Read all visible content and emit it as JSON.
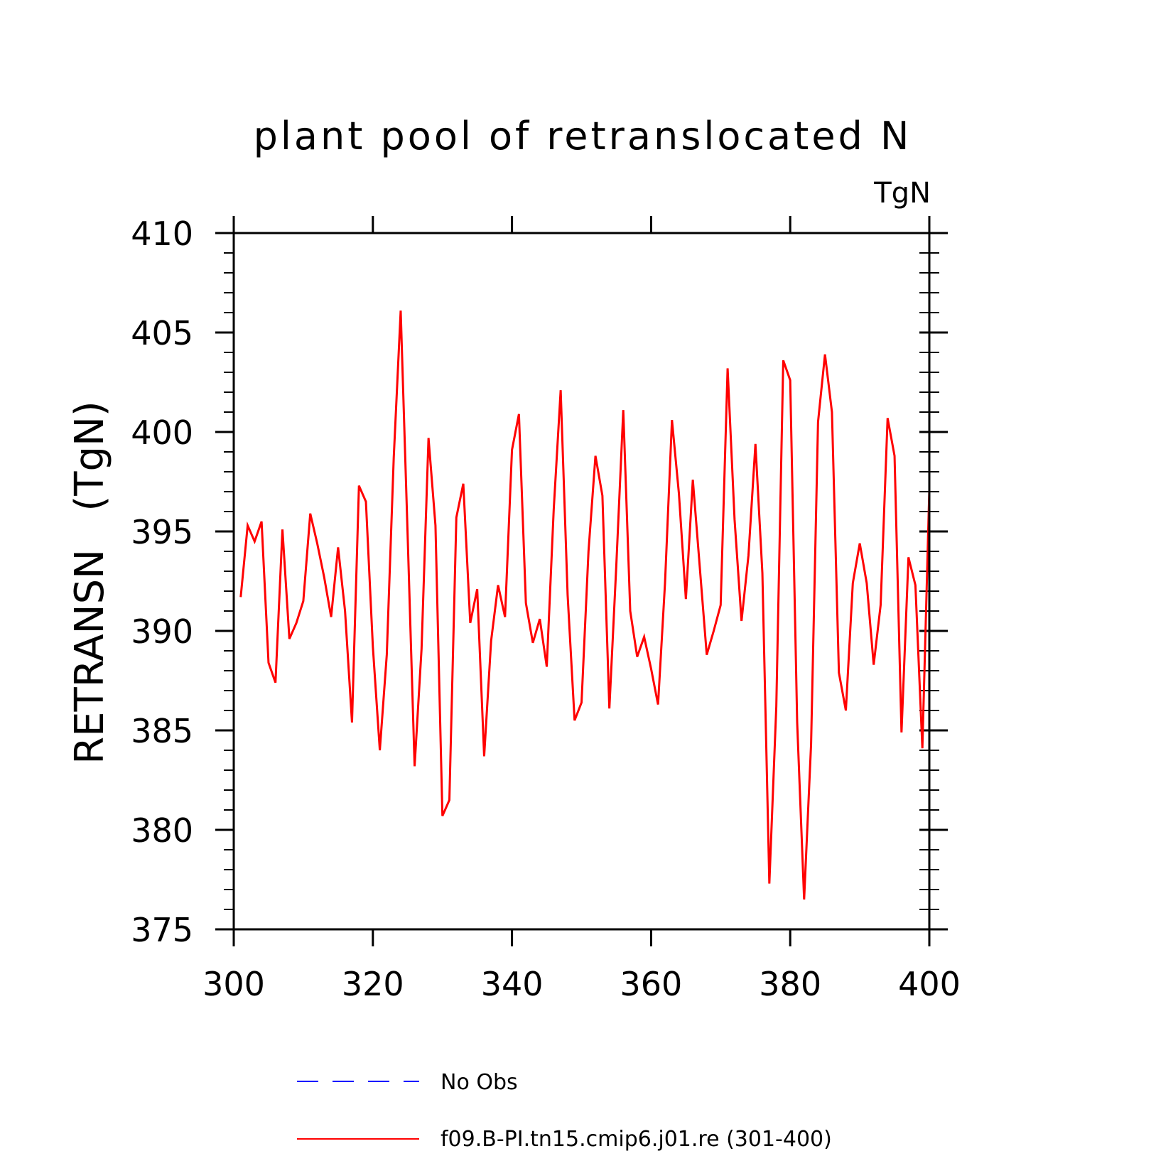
{
  "chart_data": {
    "type": "line",
    "title": "plant pool of retranslocated N",
    "units_label": "TgN",
    "xlabel": "",
    "ylabel": "RETRANSN   (TgN)",
    "xlim": [
      300,
      400
    ],
    "ylim": [
      375,
      410
    ],
    "x_ticks": [
      300,
      320,
      340,
      360,
      380,
      400
    ],
    "y_ticks": [
      375,
      380,
      385,
      390,
      395,
      400,
      405,
      410
    ],
    "grid": false,
    "legend_position": "bottom",
    "series": [
      {
        "name": "f09.B-PI.tn15.cmip6.j01.re (301-400)",
        "color": "#ff0000",
        "style": "solid",
        "x": [
          301,
          302,
          303,
          304,
          305,
          306,
          307,
          308,
          309,
          310,
          311,
          312,
          313,
          314,
          315,
          316,
          317,
          318,
          319,
          320,
          321,
          322,
          323,
          324,
          325,
          326,
          327,
          328,
          329,
          330,
          331,
          332,
          333,
          334,
          335,
          336,
          337,
          338,
          339,
          340,
          341,
          342,
          343,
          344,
          345,
          346,
          347,
          348,
          349,
          350,
          351,
          352,
          353,
          354,
          355,
          356,
          357,
          358,
          359,
          360,
          361,
          362,
          363,
          364,
          365,
          366,
          367,
          368,
          369,
          370,
          371,
          372,
          373,
          374,
          375,
          376,
          377,
          378,
          379,
          380,
          381,
          382,
          383,
          384,
          385,
          386,
          387,
          388,
          389,
          390,
          391,
          392,
          393,
          394,
          395,
          396,
          397,
          398,
          399,
          400
        ],
        "values": [
          391.7,
          395.3,
          394.5,
          395.5,
          388.4,
          387.4,
          395.1,
          389.6,
          390.4,
          391.5,
          395.9,
          394.4,
          392.7,
          390.7,
          394.2,
          391.0,
          385.4,
          397.3,
          396.5,
          389.2,
          384.0,
          388.8,
          398.7,
          406.1,
          394.8,
          383.2,
          389.1,
          399.7,
          395.3,
          380.7,
          381.5,
          395.7,
          397.4,
          390.4,
          392.1,
          383.7,
          389.5,
          392.3,
          390.7,
          399.1,
          400.9,
          391.4,
          389.4,
          390.6,
          388.2,
          396.1,
          402.1,
          391.8,
          385.5,
          386.4,
          394.0,
          398.8,
          396.8,
          386.1,
          393.3,
          401.1,
          391.0,
          388.7,
          389.7,
          388.1,
          386.3,
          392.4,
          400.6,
          396.9,
          391.6,
          397.6,
          393.2,
          388.8,
          390.0,
          391.3,
          403.2,
          395.6,
          390.5,
          393.8,
          399.4,
          392.9,
          377.3,
          386.2,
          403.6,
          402.6,
          385.4,
          376.5,
          384.3,
          400.5,
          403.9,
          401.0,
          387.9,
          386.0,
          392.4,
          394.4,
          392.4,
          388.3,
          391.3,
          400.7,
          398.8,
          384.9,
          393.7,
          392.3,
          384.1,
          397.1
        ]
      },
      {
        "name": "No Obs",
        "color": "#0000ff",
        "style": "dashed",
        "x": [],
        "values": []
      }
    ]
  }
}
